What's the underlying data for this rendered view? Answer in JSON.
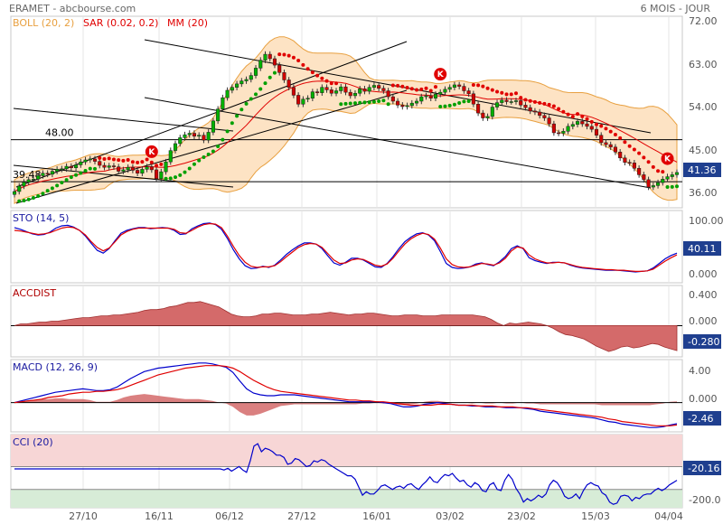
{
  "header": {
    "title": "ERAMET - abcbourse.com",
    "period": "6 MOIS - JOUR"
  },
  "legend": [
    {
      "label": "BOLL (20, 2)",
      "color": "#e8a040"
    },
    {
      "label": "SAR (0.02, 0.2)",
      "color": "#e00000"
    },
    {
      "label": "MM (20)",
      "color": "#e00000"
    }
  ],
  "colors": {
    "candle_up": "#00b000",
    "candle_down": "#d00000",
    "boll_fill": "#fde3c4",
    "boll_line": "#e8a040",
    "sar_above": "#e00000",
    "sar_below": "#00a000",
    "mm": "#e00000",
    "blue": "#0000cc",
    "red": "#e00000",
    "accdist_fill": "#d46a6a",
    "tag_bg": "#1f3f8f",
    "cci_top_band": "#f7d6d6",
    "cci_bot_band": "#d7ecd7"
  },
  "chart_data": [
    {
      "type": "candlestick",
      "title": "ERAMET",
      "x_ticks": [
        "27/10",
        "16/11",
        "06/12",
        "27/12",
        "16/01",
        "03/02",
        "23/02",
        "15/03",
        "04/04"
      ],
      "y_ticks": [
        "72.00",
        "63.00",
        "54.00",
        "45.00",
        "36.00"
      ],
      "ylim": [
        34.2,
        73.0
      ],
      "last_value": "41.36",
      "levels": [
        {
          "label": "48.00",
          "value": 48.0
        },
        {
          "label": "39.48",
          "value": 39.48
        }
      ],
      "markers": [
        {
          "label": "K",
          "index": 29
        },
        {
          "label": "K",
          "index": 90
        },
        {
          "label": "K",
          "index": 138
        }
      ],
      "close": [
        37.5,
        38.6,
        39.4,
        39.9,
        40.0,
        40.7,
        41.2,
        41.0,
        41.6,
        42.0,
        42.1,
        42.6,
        42.3,
        42.9,
        43.5,
        43.9,
        44.1,
        43.6,
        42.8,
        42.4,
        42.7,
        42.5,
        41.6,
        41.9,
        42.4,
        41.8,
        41.2,
        42.0,
        42.5,
        41.9,
        40.1,
        41.5,
        43.5,
        45.8,
        47.2,
        48.4,
        49.0,
        49.3,
        48.7,
        48.9,
        47.9,
        49.5,
        51.8,
        54.2,
        56.5,
        58.0,
        58.6,
        59.3,
        59.9,
        60.2,
        61.0,
        62.5,
        64.1,
        65.3,
        64.4,
        63.1,
        61.6,
        60.1,
        58.6,
        57.0,
        55.2,
        56.2,
        56.4,
        57.7,
        57.5,
        58.6,
        58.1,
        57.4,
        57.9,
        58.7,
        57.6,
        56.9,
        57.4,
        58.3,
        57.8,
        58.6,
        59.0,
        58.4,
        57.9,
        56.7,
        55.8,
        55.0,
        54.7,
        54.9,
        55.4,
        55.8,
        56.7,
        56.9,
        56.4,
        57.2,
        57.6,
        58.2,
        58.6,
        59.1,
        58.8,
        57.9,
        57.3,
        55.2,
        53.4,
        52.4,
        52.7,
        54.6,
        55.5,
        56.0,
        55.7,
        55.7,
        55.9,
        55.0,
        54.5,
        53.8,
        53.6,
        52.9,
        52.4,
        51.2,
        49.4,
        49.3,
        49.7,
        50.7,
        51.1,
        51.7,
        51.2,
        50.7,
        50.1,
        48.9,
        47.4,
        47.0,
        46.5,
        45.5,
        44.3,
        43.4,
        43.3,
        42.2,
        40.9,
        39.9,
        38.4,
        38.7,
        39.3,
        40.0,
        40.5,
        40.9,
        41.36
      ]
    },
    {
      "type": "line",
      "title": "STO (14, 5)",
      "y_ticks": [
        "100.00",
        "0.000"
      ],
      "ylim": [
        -12,
        115
      ],
      "last_value": "40.11",
      "series": [
        {
          "name": "",
          "color": "#0000cc",
          "values": [
            85,
            82,
            78,
            74,
            72,
            73,
            77,
            84,
            88,
            89,
            86,
            80,
            70,
            57,
            45,
            40,
            48,
            62,
            75,
            80,
            83,
            85,
            85,
            83,
            84,
            85,
            84,
            80,
            73,
            74,
            83,
            88,
            92,
            93,
            90,
            82,
            66,
            46,
            30,
            18,
            13,
            14,
            17,
            15,
            19,
            28,
            38,
            46,
            53,
            58,
            58,
            56,
            48,
            35,
            23,
            19,
            24,
            31,
            31,
            28,
            22,
            16,
            15,
            22,
            34,
            48,
            60,
            68,
            74,
            76,
            72,
            62,
            43,
            22,
            15,
            13,
            14,
            16,
            21,
            23,
            20,
            18,
            25,
            34,
            48,
            53,
            48,
            32,
            27,
            24,
            22,
            24,
            24,
            23,
            19,
            16,
            14,
            13,
            12,
            11,
            10,
            10,
            10,
            9,
            8,
            7,
            8,
            9,
            14,
            22,
            30,
            36,
            40.11
          ]
        },
        {
          "name": "",
          "color": "#e00000",
          "values": [
            80,
            79,
            77,
            75,
            73,
            74,
            76,
            80,
            84,
            86,
            85,
            80,
            72,
            60,
            50,
            44,
            49,
            60,
            72,
            78,
            82,
            84,
            84,
            84,
            84,
            84,
            84,
            82,
            76,
            75,
            80,
            86,
            90,
            92,
            91,
            85,
            70,
            52,
            36,
            24,
            17,
            15,
            16,
            16,
            18,
            25,
            34,
            42,
            50,
            55,
            57,
            56,
            50,
            39,
            28,
            22,
            23,
            28,
            30,
            29,
            24,
            19,
            17,
            21,
            31,
            44,
            56,
            65,
            71,
            75,
            73,
            65,
            49,
            30,
            20,
            16,
            15,
            16,
            19,
            22,
            21,
            19,
            23,
            31,
            44,
            51,
            49,
            37,
            30,
            26,
            23,
            23,
            24,
            23,
            20,
            17,
            15,
            14,
            13,
            12,
            11,
            11,
            10,
            10,
            9,
            8,
            8,
            9,
            12,
            19,
            26,
            32,
            37
          ]
        }
      ]
    },
    {
      "type": "area",
      "title": "ACCDIST",
      "y_ticks": [
        "0.400",
        "0.000"
      ],
      "ylim": [
        -0.35,
        0.45
      ],
      "last_value": "-0.280",
      "values": [
        0.0,
        0.02,
        0.02,
        0.03,
        0.04,
        0.04,
        0.05,
        0.05,
        0.06,
        0.07,
        0.08,
        0.09,
        0.09,
        0.1,
        0.11,
        0.11,
        0.12,
        0.12,
        0.13,
        0.14,
        0.15,
        0.17,
        0.18,
        0.18,
        0.19,
        0.21,
        0.22,
        0.24,
        0.26,
        0.26,
        0.27,
        0.25,
        0.23,
        0.21,
        0.17,
        0.13,
        0.11,
        0.1,
        0.1,
        0.11,
        0.13,
        0.13,
        0.14,
        0.14,
        0.13,
        0.12,
        0.12,
        0.12,
        0.13,
        0.13,
        0.14,
        0.15,
        0.14,
        0.13,
        0.12,
        0.13,
        0.13,
        0.14,
        0.14,
        0.13,
        0.12,
        0.11,
        0.11,
        0.12,
        0.12,
        0.12,
        0.11,
        0.11,
        0.11,
        0.12,
        0.12,
        0.12,
        0.12,
        0.12,
        0.12,
        0.11,
        0.1,
        0.07,
        0.03,
        0.0,
        0.03,
        0.02,
        0.03,
        0.04,
        0.03,
        0.02,
        0.0,
        -0.03,
        -0.07,
        -0.1,
        -0.11,
        -0.13,
        -0.15,
        -0.19,
        -0.23,
        -0.26,
        -0.29,
        -0.27,
        -0.24,
        -0.23,
        -0.25,
        -0.24,
        -0.22,
        -0.2,
        -0.21,
        -0.24,
        -0.26,
        -0.28
      ]
    },
    {
      "type": "line",
      "title": "MACD (12, 26, 9)",
      "y_ticks": [
        "4.00",
        "0.000"
      ],
      "ylim": [
        -3.4,
        5.0
      ],
      "last_value": "-2.46",
      "series": [
        {
          "name": "",
          "color": "#0000cc",
          "values": [
            0.0,
            0.2,
            0.4,
            0.6,
            0.8,
            1.0,
            1.2,
            1.3,
            1.4,
            1.5,
            1.6,
            1.5,
            1.4,
            1.4,
            1.5,
            1.8,
            2.3,
            2.8,
            3.2,
            3.6,
            3.8,
            4.0,
            4.1,
            4.2,
            4.3,
            4.4,
            4.5,
            4.6,
            4.6,
            4.5,
            4.3,
            4.1,
            3.5,
            2.5,
            1.6,
            1.1,
            0.9,
            0.8,
            0.8,
            0.9,
            0.9,
            0.9,
            0.8,
            0.7,
            0.6,
            0.5,
            0.4,
            0.3,
            0.2,
            0.1,
            0.1,
            0.1,
            0.1,
            0.1,
            0.0,
            -0.1,
            -0.3,
            -0.5,
            -0.5,
            -0.4,
            -0.2,
            -0.1,
            0.0,
            -0.1,
            -0.2,
            -0.3,
            -0.3,
            -0.4,
            -0.4,
            -0.5,
            -0.5,
            -0.5,
            -0.6,
            -0.6,
            -0.6,
            -0.7,
            -0.8,
            -1.0,
            -1.1,
            -1.2,
            -1.3,
            -1.4,
            -1.5,
            -1.6,
            -1.7,
            -1.8,
            -2.0,
            -2.2,
            -2.3,
            -2.5,
            -2.6,
            -2.7,
            -2.8,
            -2.9,
            -2.9,
            -2.8,
            -2.6,
            -2.46
          ]
        },
        {
          "name": "",
          "color": "#e00000",
          "values": [
            0.0,
            0.1,
            0.2,
            0.3,
            0.4,
            0.6,
            0.7,
            0.8,
            1.0,
            1.1,
            1.2,
            1.2,
            1.3,
            1.3,
            1.4,
            1.5,
            1.7,
            2.0,
            2.3,
            2.6,
            2.9,
            3.2,
            3.4,
            3.6,
            3.8,
            4.0,
            4.1,
            4.2,
            4.3,
            4.3,
            4.3,
            4.2,
            4.0,
            3.6,
            3.1,
            2.6,
            2.2,
            1.8,
            1.5,
            1.3,
            1.2,
            1.1,
            1.0,
            0.9,
            0.8,
            0.7,
            0.6,
            0.5,
            0.4,
            0.3,
            0.3,
            0.2,
            0.2,
            0.1,
            0.1,
            0.0,
            -0.1,
            -0.2,
            -0.3,
            -0.3,
            -0.3,
            -0.3,
            -0.2,
            -0.2,
            -0.2,
            -0.3,
            -0.3,
            -0.3,
            -0.4,
            -0.4,
            -0.4,
            -0.5,
            -0.5,
            -0.5,
            -0.6,
            -0.6,
            -0.7,
            -0.8,
            -0.9,
            -1.0,
            -1.1,
            -1.2,
            -1.3,
            -1.4,
            -1.5,
            -1.6,
            -1.7,
            -1.9,
            -2.0,
            -2.2,
            -2.3,
            -2.4,
            -2.5,
            -2.6,
            -2.7,
            -2.7,
            -2.7,
            -2.6
          ]
        }
      ]
    },
    {
      "type": "line",
      "title": "CCI (20)",
      "y_ticks": [
        "-200.0"
      ],
      "ylim": [
        -260,
        380
      ],
      "last_value": "-20.16",
      "series": [
        {
          "name": "",
          "color": "#0000cc",
          "values": [
            80,
            80,
            80,
            80,
            80,
            80,
            80,
            80,
            80,
            80,
            80,
            80,
            80,
            80,
            80,
            80,
            80,
            80,
            80,
            80,
            80,
            80,
            80,
            80,
            80,
            80,
            80,
            80,
            80,
            80,
            80,
            80,
            80,
            80,
            80,
            80,
            80,
            80,
            80,
            80,
            80,
            80,
            80,
            80,
            80,
            80,
            80,
            80,
            80,
            80,
            80,
            80,
            80,
            80,
            80,
            80,
            70,
            85,
            60,
            80,
            100,
            70,
            50,
            150,
            280,
            300,
            230,
            260,
            250,
            230,
            200,
            200,
            180,
            120,
            130,
            170,
            160,
            130,
            100,
            110,
            150,
            140,
            160,
            150,
            120,
            100,
            80,
            60,
            40,
            20,
            20,
            -10,
            -80,
            -150,
            -120,
            -140,
            -140,
            -110,
            -70,
            -60,
            -80,
            -100,
            -80,
            -70,
            -90,
            -60,
            -50,
            -80,
            -100,
            -60,
            -30,
            10,
            -30,
            -40,
            0,
            30,
            20,
            40,
            0,
            -30,
            -20,
            -60,
            -80,
            -40,
            -60,
            -110,
            -120,
            -60,
            -40,
            -100,
            -110,
            -20,
            30,
            -10,
            -90,
            -140,
            -210,
            -180,
            -200,
            -180,
            -150,
            -170,
            -140,
            -60,
            -20,
            -40,
            -90,
            -160,
            -180,
            -170,
            -140,
            -180,
            -110,
            -60,
            -40,
            -60,
            -70,
            -130,
            -150,
            -210,
            -230,
            -220,
            -160,
            -150,
            -160,
            -200,
            -170,
            -180,
            -150,
            -140,
            -140,
            -110,
            -90,
            -110,
            -90,
            -60,
            -40,
            -20.16
          ]
        }
      ]
    }
  ],
  "axis_bottom": [
    "27/10",
    "16/11",
    "06/12",
    "27/12",
    "16/01",
    "03/02",
    "23/02",
    "15/03",
    "04/04"
  ]
}
